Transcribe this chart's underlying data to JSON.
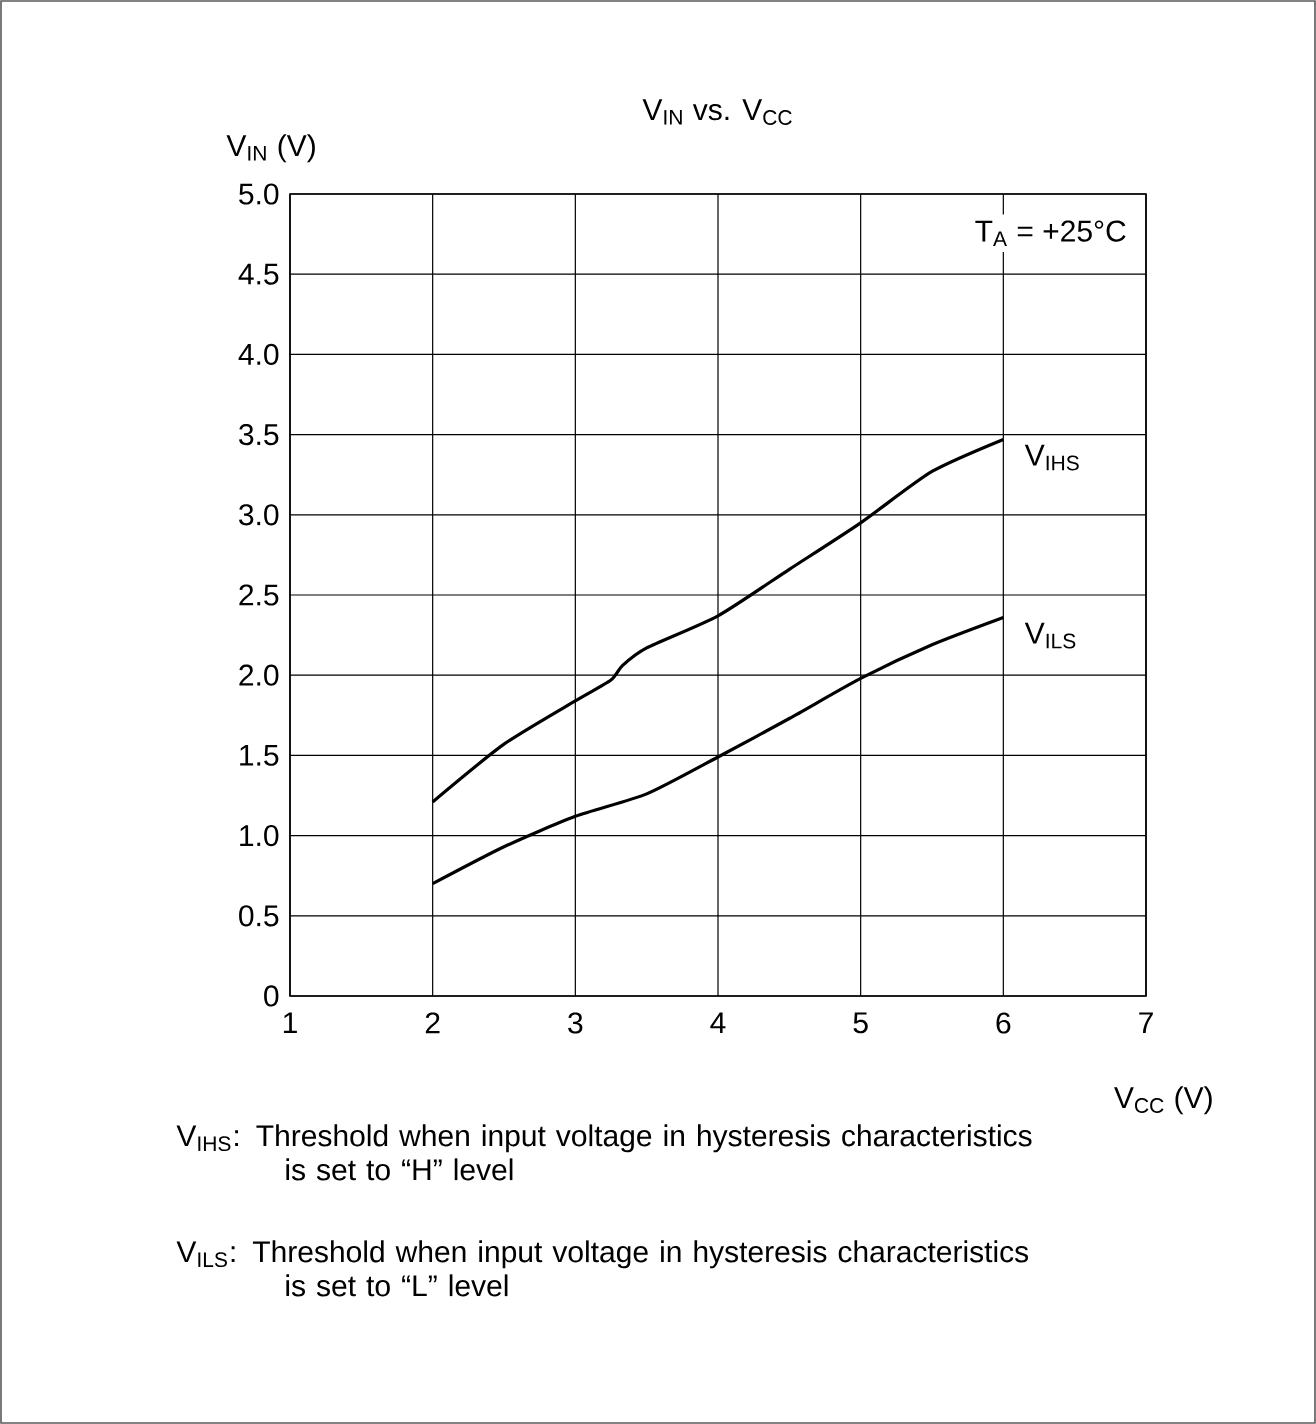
{
  "chart_data": {
    "type": "line",
    "title": "V$_{IN}$ vs. V$_{CC}$",
    "xlabel": "V$_{CC}$ (V)",
    "ylabel": "V$_{IN}$ (V)",
    "xlim": [
      1,
      7
    ],
    "xticks": [
      1,
      2,
      3,
      4,
      5,
      6,
      7
    ],
    "ylim": [
      0,
      5
    ],
    "yticks": [
      0,
      0.5,
      {
        "value": 1,
        "label": "1.0"
      },
      1.5,
      {
        "value": 2,
        "label": "2.0"
      },
      2.5,
      {
        "value": 3,
        "label": "3.0"
      },
      3.5,
      {
        "value": 4,
        "label": "4.0"
      },
      4.5,
      {
        "value": 5,
        "label": "5.0"
      }
    ],
    "grid": true,
    "legend": false,
    "marker": "none",
    "line_style": "solid",
    "series": [
      {
        "name": "V$_{IHS}$",
        "color": "#000000",
        "x": [
          2,
          2.5,
          3,
          3.25,
          3.33,
          3.5,
          4,
          4.5,
          5,
          5.5,
          6
        ],
        "values": [
          1.21,
          1.57,
          1.84,
          1.97,
          2.06,
          2.17,
          2.37,
          2.66,
          2.95,
          3.27,
          3.47
        ]
      },
      {
        "name": "V$_{ILS}$",
        "color": "#000000",
        "x": [
          2,
          2.5,
          3,
          3.5,
          4,
          4.5,
          5,
          5.5,
          6
        ],
        "values": [
          0.7,
          0.93,
          1.12,
          1.26,
          1.49,
          1.73,
          1.98,
          2.19,
          2.36
        ]
      }
    ],
    "annotations": [
      "T$_{A}$ = +25°C",
      "V$_{IHS}$: Threshold when input voltage in hysteresis characteristics is set to “H” level",
      "V$_{ILS}$: Threshold when input voltage in hysteresis characteristics is set to “L” level"
    ]
  }
}
